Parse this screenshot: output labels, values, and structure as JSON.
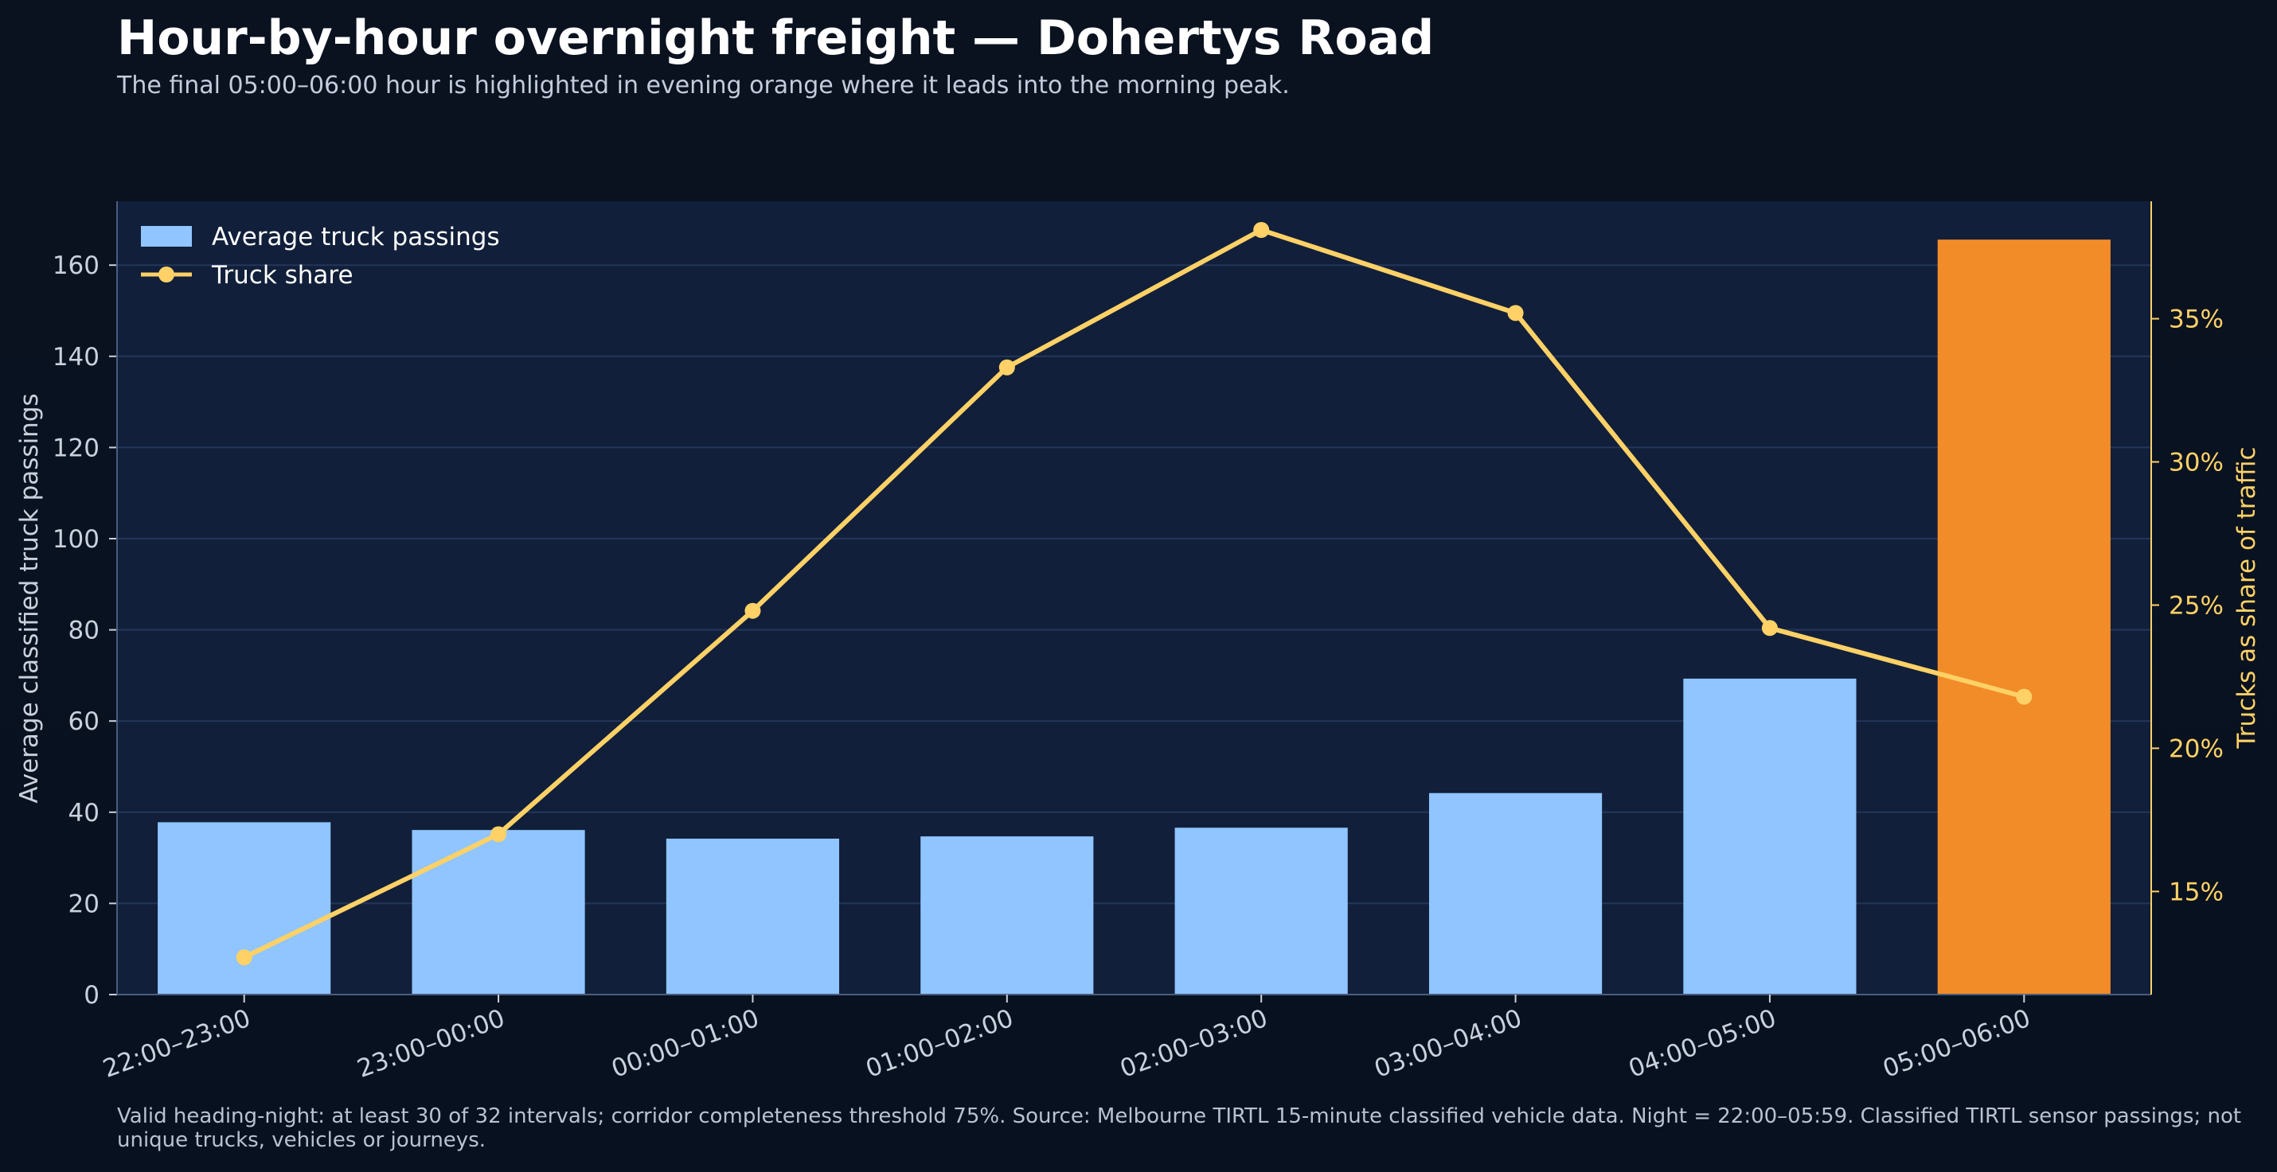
{
  "title": "Hour-by-hour overnight freight — Dohertys Road",
  "subtitle": "The final 05:00–06:00 hour is highlighted in evening orange where it leads into the morning peak.",
  "footnote": "Valid heading-night: at least 30 of 32 intervals; corridor completeness threshold 75%. Source: Melbourne TIRTL 15-minute classified vehicle data. Night = 22:00–05:59. Classified TIRTL sensor passings; not unique trucks, vehicles or journeys.",
  "colors": {
    "background": "#0a1220",
    "plot_background": "#111f3a",
    "bar": "#90c5ff",
    "bar_highlight": "#f28c28",
    "line": "#ffd166",
    "grid": "#24365a",
    "axis_text": "#c9d1de",
    "right_axis": "#ffd166"
  },
  "chart_data": {
    "type": "bar",
    "categories": [
      "22:00–23:00",
      "23:00–00:00",
      "00:00–01:00",
      "01:00–02:00",
      "02:00–03:00",
      "03:00–04:00",
      "04:00–05:00",
      "05:00–06:00"
    ],
    "highlight_category": "05:00–06:00",
    "series": [
      {
        "name": "Average truck passings",
        "type": "bar",
        "axis": "left",
        "values": [
          37.8,
          36.1,
          34.2,
          34.7,
          36.6,
          44.2,
          69.3,
          165.6
        ]
      },
      {
        "name": "Truck share",
        "type": "line",
        "axis": "right",
        "values": [
          12.7,
          17.0,
          24.8,
          33.3,
          38.1,
          35.2,
          24.2,
          21.8
        ]
      }
    ],
    "ylabel": "Average classified truck passings",
    "ylim": [
      0,
      174
    ],
    "yticks": [
      0,
      20,
      40,
      60,
      80,
      100,
      120,
      140,
      160
    ],
    "ytick_labels": [
      "0",
      "20",
      "40",
      "60",
      "80",
      "100",
      "120",
      "140",
      "160"
    ],
    "y2label": "Trucks as share of traffic",
    "y2lim": [
      11.4,
      39.1
    ],
    "y2ticks": [
      15,
      20,
      25,
      30,
      35
    ],
    "y2tick_labels": [
      "15%",
      "20%",
      "25%",
      "30%",
      "35%"
    ],
    "xlabel": "",
    "grid": true,
    "legend_position": "top-left"
  }
}
